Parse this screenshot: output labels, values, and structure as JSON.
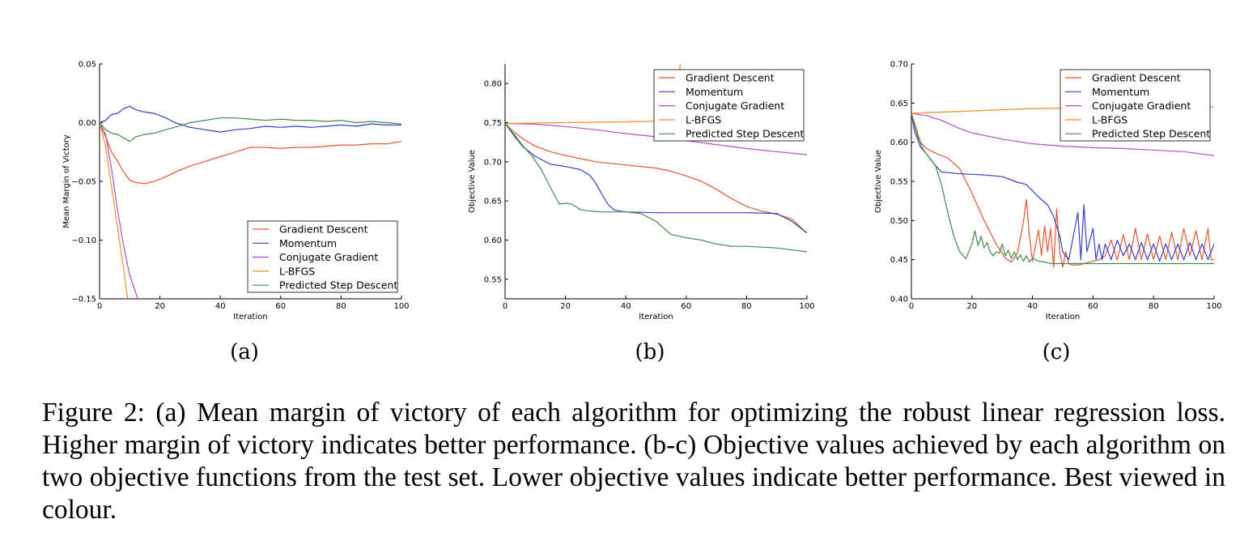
{
  "colors": {
    "Gradient Descent": "#e5572c",
    "Momentum": "#3140cc",
    "Conjugate Gradient": "#b64fc4",
    "L-BFGS": "#f0902a",
    "Predicted Step Descent": "#3f8f4a"
  },
  "subfigure_labels": [
    "(a)",
    "(b)",
    "(c)"
  ],
  "caption": "Figure 2: (a) Mean margin of victory of each algorithm for optimizing the robust linear regression loss.  Higher margin of victory indicates better performance.  (b-c) Objective values achieved by each algorithm on two objective functions from the test set. Lower objective values indicate better performance. Best viewed in colour.",
  "chart_data": [
    {
      "type": "line",
      "id": "a",
      "xlabel": "Iteration",
      "ylabel": "Mean Margin of Victory",
      "xlim": [
        0,
        100
      ],
      "ylim": [
        -0.15,
        0.05
      ],
      "xticks": [
        0,
        20,
        40,
        60,
        80,
        100
      ],
      "yticks": [
        -0.15,
        -0.1,
        -0.05,
        0.0,
        0.05
      ],
      "ytick_labels": [
        "−0.15",
        "−0.10",
        "−0.05",
        "0.00",
        "0.05"
      ],
      "legend": "lower-right",
      "series": [
        {
          "name": "Gradient Descent",
          "x": [
            0,
            2,
            4,
            6,
            8,
            10,
            12,
            15,
            18,
            22,
            26,
            30,
            35,
            40,
            45,
            50,
            55,
            60,
            65,
            70,
            75,
            80,
            85,
            90,
            95,
            100
          ],
          "y": [
            0,
            -0.012,
            -0.025,
            -0.033,
            -0.042,
            -0.049,
            -0.051,
            -0.052,
            -0.05,
            -0.046,
            -0.041,
            -0.037,
            -0.033,
            -0.029,
            -0.025,
            -0.021,
            -0.021,
            -0.022,
            -0.021,
            -0.021,
            -0.02,
            -0.019,
            -0.019,
            -0.018,
            -0.018,
            -0.016
          ]
        },
        {
          "name": "Momentum",
          "x": [
            0,
            2,
            4,
            6,
            8,
            10,
            12,
            15,
            18,
            20,
            22,
            25,
            30,
            35,
            40,
            45,
            50,
            55,
            60,
            65,
            70,
            75,
            80,
            85,
            90,
            95,
            100
          ],
          "y": [
            0,
            0.002,
            0.007,
            0.008,
            0.012,
            0.014,
            0.011,
            0.009,
            0.008,
            0.006,
            0.004,
            0.0,
            -0.004,
            -0.006,
            -0.008,
            -0.006,
            -0.005,
            -0.003,
            -0.004,
            -0.003,
            -0.004,
            -0.003,
            -0.002,
            -0.003,
            -0.001,
            -0.002,
            -0.002
          ]
        },
        {
          "name": "Conjugate Gradient",
          "x": [
            0,
            2,
            4,
            6,
            8,
            10,
            12,
            14
          ],
          "y": [
            0,
            -0.01,
            -0.04,
            -0.075,
            -0.105,
            -0.13,
            -0.145,
            -0.16
          ]
        },
        {
          "name": "L-BFGS",
          "x": [
            0,
            2,
            4,
            6,
            8,
            9,
            10
          ],
          "y": [
            0,
            -0.02,
            -0.055,
            -0.09,
            -0.125,
            -0.145,
            -0.16
          ]
        },
        {
          "name": "Predicted Step Descent",
          "x": [
            0,
            2,
            4,
            6,
            8,
            10,
            12,
            15,
            18,
            22,
            26,
            30,
            35,
            40,
            45,
            50,
            55,
            60,
            65,
            70,
            75,
            80,
            85,
            90,
            95,
            100
          ],
          "y": [
            0,
            -0.006,
            -0.009,
            -0.01,
            -0.013,
            -0.016,
            -0.012,
            -0.01,
            -0.009,
            -0.006,
            -0.003,
            0.0,
            0.002,
            0.004,
            0.004,
            0.003,
            0.002,
            0.003,
            0.002,
            0.002,
            0.001,
            0.002,
            0.0,
            0.001,
            0.0,
            -0.001
          ]
        }
      ]
    },
    {
      "type": "line",
      "id": "b",
      "xlabel": "Iteration",
      "ylabel": "Objective Value",
      "xlim": [
        0,
        100
      ],
      "ylim": [
        0.525,
        0.825
      ],
      "xticks": [
        0,
        20,
        40,
        60,
        80,
        100
      ],
      "yticks": [
        0.55,
        0.6,
        0.65,
        0.7,
        0.75,
        0.8
      ],
      "ytick_labels": [
        "0.55",
        "0.60",
        "0.65",
        "0.70",
        "0.75",
        "0.80"
      ],
      "legend": "top-right",
      "series": [
        {
          "name": "Gradient Descent",
          "x": [
            0,
            3,
            6,
            10,
            15,
            20,
            25,
            30,
            35,
            40,
            45,
            50,
            55,
            60,
            65,
            70,
            75,
            80,
            85,
            90,
            95,
            100
          ],
          "y": [
            0.749,
            0.738,
            0.729,
            0.72,
            0.713,
            0.708,
            0.704,
            0.7,
            0.698,
            0.696,
            0.694,
            0.692,
            0.688,
            0.682,
            0.675,
            0.665,
            0.653,
            0.643,
            0.637,
            0.633,
            0.627,
            0.609
          ]
        },
        {
          "name": "Momentum",
          "x": [
            0,
            3,
            6,
            10,
            15,
            20,
            25,
            28,
            30,
            32,
            34,
            36,
            38,
            40,
            50,
            60,
            70,
            80,
            90,
            95,
            100
          ],
          "y": [
            0.749,
            0.733,
            0.719,
            0.707,
            0.697,
            0.694,
            0.69,
            0.683,
            0.673,
            0.659,
            0.646,
            0.639,
            0.637,
            0.636,
            0.635,
            0.635,
            0.635,
            0.635,
            0.634,
            0.624,
            0.609
          ]
        },
        {
          "name": "Conjugate Gradient",
          "x": [
            0,
            10,
            20,
            30,
            40,
            50,
            60,
            70,
            80,
            90,
            100
          ],
          "y": [
            0.749,
            0.748,
            0.745,
            0.741,
            0.736,
            0.732,
            0.727,
            0.722,
            0.717,
            0.713,
            0.709
          ]
        },
        {
          "name": "L-BFGS",
          "x": [
            0,
            20,
            40,
            50,
            57,
            58
          ],
          "y": [
            0.749,
            0.75,
            0.751,
            0.752,
            0.755,
            0.825
          ]
        },
        {
          "name": "Predicted Step Descent",
          "x": [
            0,
            3,
            6,
            9,
            12,
            14,
            16,
            18,
            20,
            22,
            25,
            28,
            32,
            36,
            40,
            45,
            50,
            55,
            60,
            65,
            70,
            75,
            80,
            90,
            100
          ],
          "y": [
            0.749,
            0.735,
            0.72,
            0.707,
            0.69,
            0.675,
            0.66,
            0.646,
            0.647,
            0.646,
            0.639,
            0.637,
            0.636,
            0.636,
            0.636,
            0.634,
            0.624,
            0.607,
            0.603,
            0.6,
            0.595,
            0.592,
            0.592,
            0.59,
            0.585
          ]
        }
      ]
    },
    {
      "type": "line",
      "id": "c",
      "xlabel": "Iteration",
      "ylabel": "Objective Value",
      "xlim": [
        0,
        100
      ],
      "ylim": [
        0.4,
        0.7
      ],
      "xticks": [
        0,
        20,
        40,
        60,
        80,
        100
      ],
      "yticks": [
        0.4,
        0.45,
        0.5,
        0.55,
        0.6,
        0.65,
        0.7
      ],
      "ytick_labels": [
        "0.40",
        "0.45",
        "0.50",
        "0.55",
        "0.60",
        "0.65",
        "0.70"
      ],
      "legend": "top-right",
      "series": [
        {
          "name": "Gradient Descent",
          "x": [
            0,
            1,
            3,
            5,
            8,
            12,
            16,
            20,
            24,
            28,
            31,
            33,
            35,
            37,
            38,
            39,
            40,
            42,
            43,
            44,
            45,
            46,
            47,
            48,
            49,
            50,
            51,
            52,
            53,
            55,
            57,
            60,
            62,
            64,
            66,
            68,
            70,
            72,
            74,
            76,
            78,
            80,
            82,
            84,
            86,
            88,
            90,
            92,
            94,
            96,
            98,
            99,
            100
          ],
          "y": [
            0.637,
            0.625,
            0.6,
            0.592,
            0.586,
            0.58,
            0.566,
            0.535,
            0.5,
            0.47,
            0.452,
            0.447,
            0.458,
            0.498,
            0.527,
            0.48,
            0.448,
            0.488,
            0.455,
            0.493,
            0.46,
            0.49,
            0.44,
            0.515,
            0.46,
            0.44,
            0.46,
            0.445,
            0.443,
            0.443,
            0.445,
            0.448,
            0.45,
            0.455,
            0.475,
            0.45,
            0.482,
            0.45,
            0.49,
            0.45,
            0.483,
            0.45,
            0.48,
            0.45,
            0.485,
            0.45,
            0.49,
            0.455,
            0.487,
            0.45,
            0.49,
            0.45,
            0.45
          ]
        },
        {
          "name": "Momentum",
          "x": [
            0,
            1,
            3,
            5,
            8,
            10,
            15,
            20,
            25,
            30,
            35,
            38,
            40,
            42,
            45,
            47,
            49,
            50,
            52,
            53,
            55,
            56,
            57,
            58,
            60,
            61,
            62,
            63,
            64,
            66,
            68,
            70,
            72,
            74,
            76,
            78,
            80,
            82,
            84,
            86,
            88,
            90,
            92,
            94,
            96,
            98,
            100
          ],
          "y": [
            0.637,
            0.615,
            0.594,
            0.585,
            0.57,
            0.562,
            0.56,
            0.559,
            0.558,
            0.556,
            0.549,
            0.546,
            0.538,
            0.53,
            0.52,
            0.505,
            0.48,
            0.46,
            0.45,
            0.47,
            0.51,
            0.45,
            0.52,
            0.46,
            0.49,
            0.45,
            0.47,
            0.45,
            0.47,
            0.45,
            0.475,
            0.455,
            0.47,
            0.45,
            0.472,
            0.45,
            0.47,
            0.448,
            0.47,
            0.45,
            0.47,
            0.45,
            0.472,
            0.45,
            0.47,
            0.45,
            0.47
          ]
        },
        {
          "name": "Conjugate Gradient",
          "x": [
            0,
            5,
            10,
            15,
            20,
            30,
            40,
            50,
            60,
            70,
            80,
            90,
            100
          ],
          "y": [
            0.637,
            0.634,
            0.628,
            0.619,
            0.612,
            0.604,
            0.598,
            0.595,
            0.593,
            0.592,
            0.59,
            0.588,
            0.583
          ]
        },
        {
          "name": "L-BFGS",
          "x": [
            0,
            20,
            40,
            60,
            80,
            100
          ],
          "y": [
            0.637,
            0.64,
            0.643,
            0.644,
            0.644,
            0.645
          ]
        },
        {
          "name": "Predicted Step Descent",
          "x": [
            0,
            2,
            4,
            6,
            8,
            10,
            12,
            14,
            16,
            18,
            20,
            21,
            22,
            23,
            24,
            25,
            26,
            27,
            28,
            29,
            30,
            31,
            32,
            33,
            34,
            35,
            36,
            37,
            38,
            39,
            40,
            42,
            44,
            46,
            50,
            60,
            70,
            80,
            90,
            100
          ],
          "y": [
            0.637,
            0.608,
            0.59,
            0.58,
            0.57,
            0.545,
            0.51,
            0.48,
            0.46,
            0.451,
            0.47,
            0.487,
            0.468,
            0.48,
            0.465,
            0.472,
            0.46,
            0.455,
            0.46,
            0.458,
            0.47,
            0.455,
            0.462,
            0.452,
            0.46,
            0.45,
            0.456,
            0.448,
            0.455,
            0.447,
            0.452,
            0.448,
            0.447,
            0.445,
            0.445,
            0.445,
            0.445,
            0.445,
            0.445,
            0.445
          ]
        }
      ]
    }
  ]
}
